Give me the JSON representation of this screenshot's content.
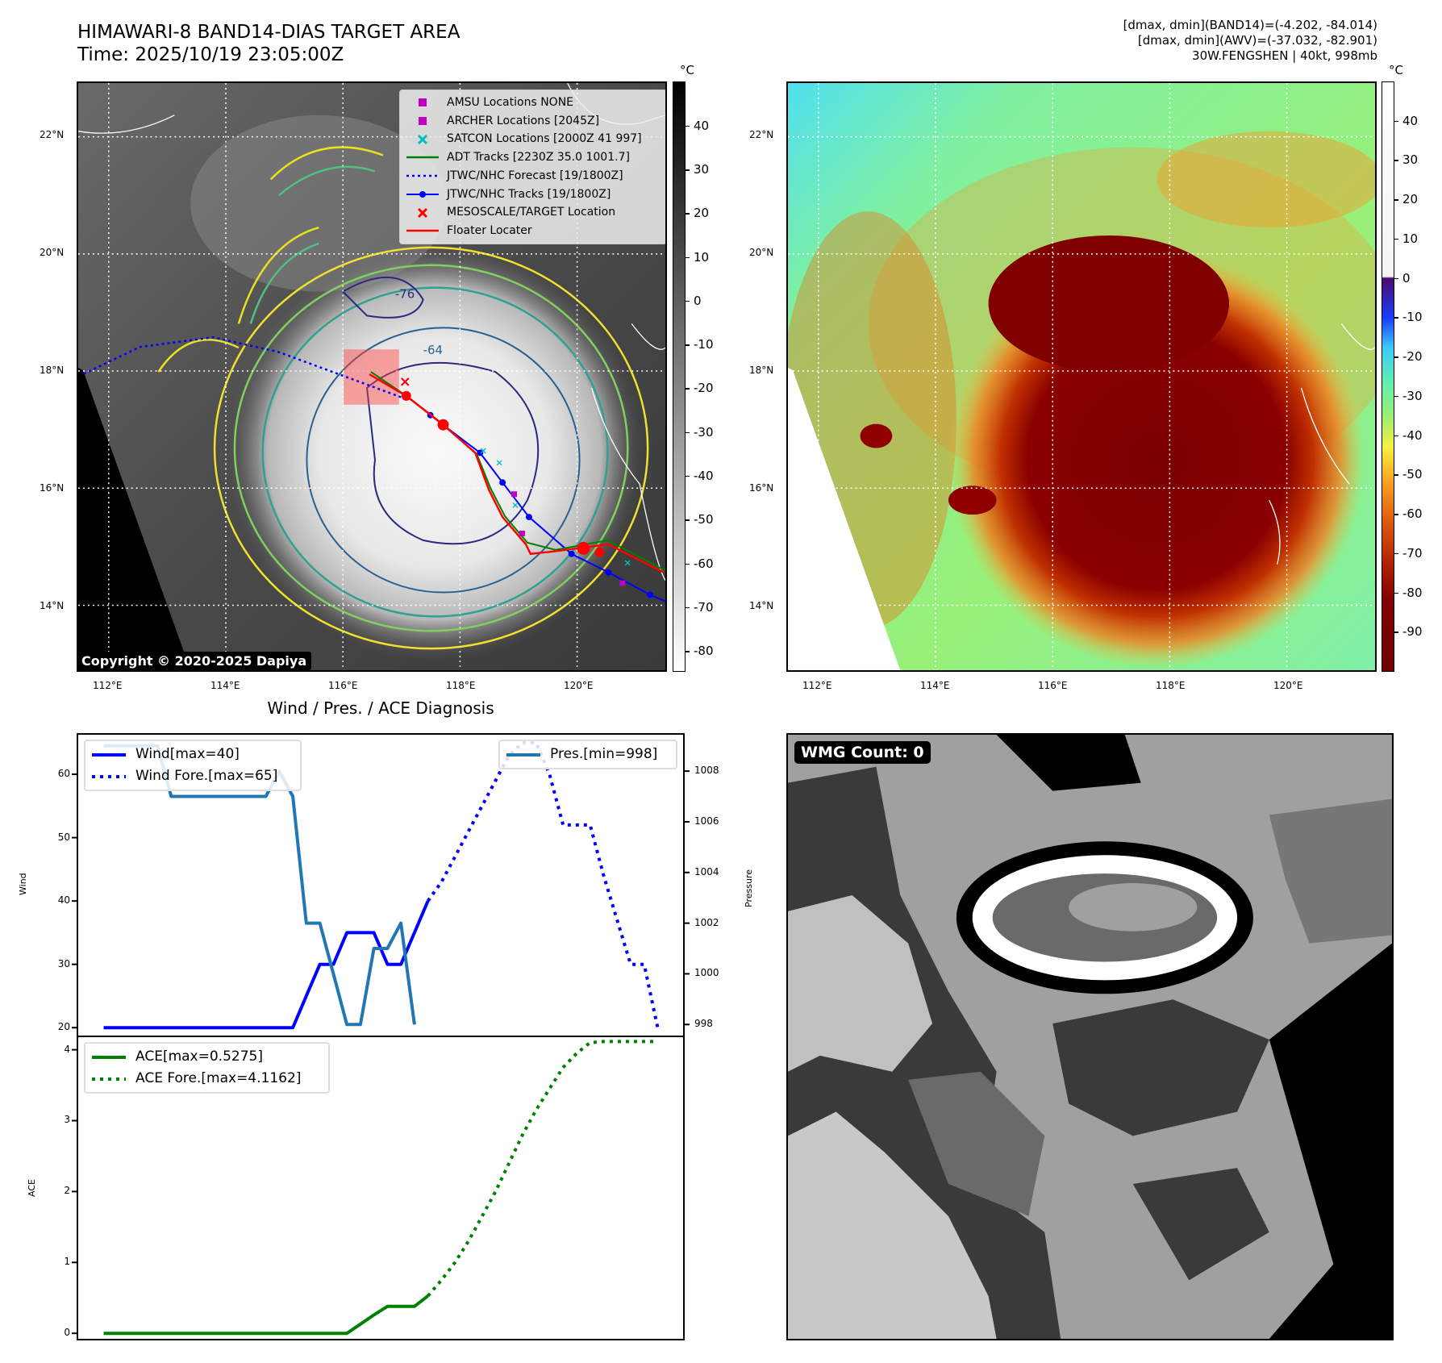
{
  "header": {
    "title_line1": "HIMAWARI-8 BAND14-DIAS TARGET AREA",
    "title_line2": "Time: 2025/10/19 23:05:00Z",
    "info_line1": "[dmax, dmin](BAND14)=(-4.202, -84.014)",
    "info_line2": "[dmax, dmin](AWV)=(-37.032, -82.901)",
    "info_line3": "30W.FENGSHEN | 40kt, 998mb"
  },
  "map": {
    "lat_labels": [
      "22°N",
      "20°N",
      "18°N",
      "16°N",
      "14°N"
    ],
    "lon_labels": [
      "112°E",
      "114°E",
      "116°E",
      "118°E",
      "120°E"
    ],
    "contour_labels": [
      "-76",
      "-64"
    ],
    "copyright": "Copyright © 2020-2025 Dapiya",
    "legend": [
      {
        "label": "AMSU Locations NONE",
        "color": "#c000c0",
        "symbol": "square"
      },
      {
        "label": "ARCHER Locations [2045Z]",
        "color": "#c000c0",
        "symbol": "square"
      },
      {
        "label": "SATCON Locations [2000Z 41 997]",
        "color": "#00c0c0",
        "symbol": "x"
      },
      {
        "label": "ADT Tracks [2230Z 35.0 1001.7]",
        "color": "#008000",
        "symbol": "line"
      },
      {
        "label": "JTWC/NHC Forecast [19/1800Z]",
        "color": "#0000ff",
        "symbol": "dotted"
      },
      {
        "label": "JTWC/NHC Tracks [19/1800Z]",
        "color": "#0000ff",
        "symbol": "line-dot"
      },
      {
        "label": "MESOSCALE/TARGET Location",
        "color": "#ff0000",
        "symbol": "x"
      },
      {
        "label": "Floater Locater",
        "color": "#ff0000",
        "symbol": "line"
      }
    ]
  },
  "colorbar_left": {
    "unit": "°C",
    "vmin": -84.6,
    "vmax": 50.3,
    "ticks": [
      40,
      30,
      20,
      10,
      0,
      -10,
      -20,
      -30,
      -40,
      -50,
      -60,
      -70,
      -80
    ]
  },
  "colorbar_right": {
    "unit": "°C",
    "vmin": -100,
    "vmax": 50.2,
    "ticks": [
      40,
      30,
      20,
      10,
      0,
      -10,
      -20,
      -30,
      -40,
      -50,
      -60,
      -70,
      -80,
      -90
    ]
  },
  "wmg": {
    "label": "WMG Count: 0"
  },
  "chart_data": [
    {
      "type": "line",
      "title": "Wind / Pres. / ACE Diagnosis",
      "ylabel": "Wind",
      "ylabel_right": "Pressure",
      "xlim": [
        -2,
        43
      ],
      "ylim": [
        18.5,
        66.5
      ],
      "ylim_right": [
        997.5,
        1009.5
      ],
      "yticks": [
        20,
        30,
        40,
        50,
        60
      ],
      "yticks_right": [
        998,
        1000,
        1002,
        1004,
        1006,
        1008
      ],
      "series": [
        {
          "name": "Wind[max=40]",
          "style": "solid",
          "color": "#0000ff",
          "x0": 0,
          "values": [
            20,
            20,
            20,
            20,
            20,
            20,
            20,
            20,
            20,
            20,
            20,
            20,
            20,
            20,
            20,
            25,
            30,
            30,
            35,
            35,
            35,
            30,
            30,
            35,
            40
          ]
        },
        {
          "name": "Wind Fore.[max=65]",
          "style": "dotted",
          "color": "#0000ff",
          "x0": 24,
          "values": [
            40,
            43,
            47,
            51,
            55,
            59,
            63,
            65,
            65,
            60,
            52,
            52,
            52,
            44,
            37,
            30,
            30,
            20
          ]
        },
        {
          "name": "Pres.[min=998]",
          "style": "solid",
          "color": "#1f77b4",
          "axis": "right",
          "x0": 0,
          "values": [
            1009,
            1009,
            1009,
            1009,
            1009,
            1007,
            1007,
            1007,
            1007,
            1007,
            1007,
            1007,
            1007,
            1008,
            1007,
            1002,
            1002,
            1000,
            998,
            998,
            1001,
            1001,
            1002,
            998
          ]
        }
      ]
    },
    {
      "type": "line",
      "ylabel": "ACE",
      "xlim": [
        -2,
        43
      ],
      "ylim": [
        -0.1,
        4.2
      ],
      "yticks": [
        0,
        1,
        2,
        3,
        4
      ],
      "series": [
        {
          "name": "ACE[max=0.5275]",
          "style": "solid",
          "color": "#008000",
          "x0": 0,
          "values": [
            0,
            0,
            0,
            0,
            0,
            0,
            0,
            0,
            0,
            0,
            0,
            0,
            0,
            0,
            0,
            0,
            0,
            0,
            0,
            0.13,
            0.26,
            0.38,
            0.38,
            0.38,
            0.5275
          ]
        },
        {
          "name": "ACE Fore.[max=4.1162]",
          "style": "dotted",
          "color": "#008000",
          "x0": 24,
          "values": [
            0.5275,
            0.75,
            1.0,
            1.3,
            1.65,
            2.0,
            2.4,
            2.8,
            3.15,
            3.45,
            3.75,
            3.95,
            4.1,
            4.1162,
            4.1162,
            4.1162,
            4.1162,
            4.1162
          ]
        }
      ]
    }
  ]
}
